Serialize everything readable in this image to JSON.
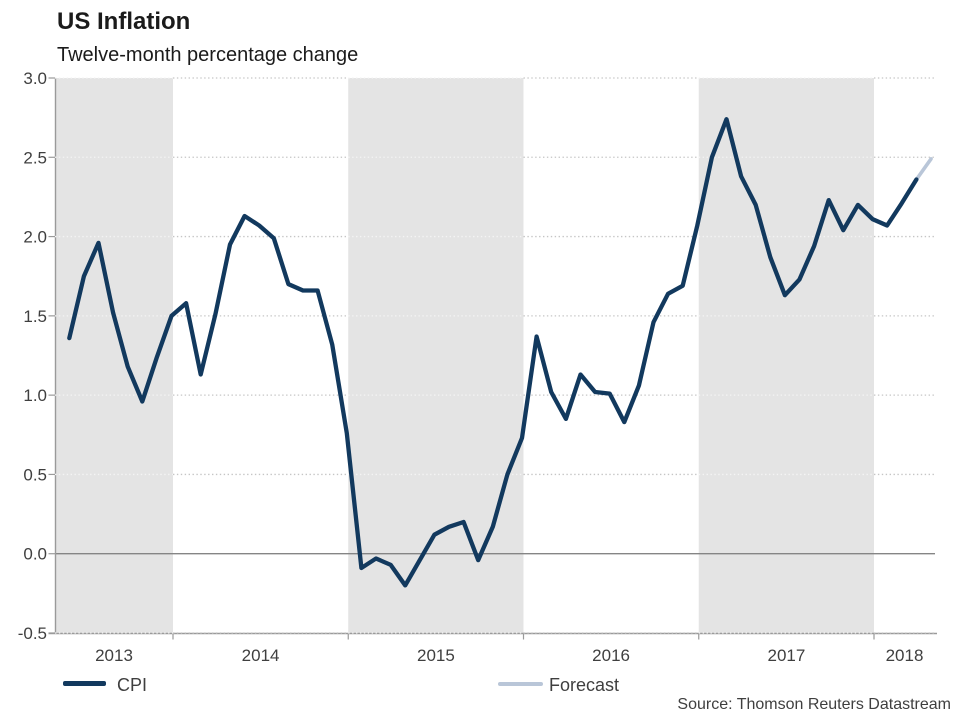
{
  "chart_data": {
    "type": "line",
    "title": "US Inflation",
    "subtitle": "Twelve-month percentage change",
    "source": "Source: Thomson Reuters Datastream",
    "ylim": [
      -0.5,
      3.0
    ],
    "ytick_values": [
      3.0,
      2.5,
      2.0,
      1.5,
      1.0,
      0.5,
      0.0,
      -0.5
    ],
    "ytick_labels": [
      "3.0",
      "2.5",
      "2.0",
      "1.5",
      "1.0",
      "0.5",
      "0.0",
      "-0.5"
    ],
    "xtick_labels": [
      "2013",
      "2014",
      "2015",
      "2016",
      "2017",
      "2018"
    ],
    "shaded_years": [
      2013,
      2015,
      2017
    ],
    "grid": "dotted horizontal, zero line solid",
    "legend_position": "bottom",
    "frequency": "monthly",
    "legend": [
      {
        "label": "CPI",
        "color": "#12395e"
      },
      {
        "label": "Forecast",
        "color": "#b9c6d8"
      }
    ],
    "series": [
      {
        "name": "CPI",
        "color": "#12395e",
        "start": "2013-05",
        "values": [
          1.36,
          1.75,
          1.96,
          1.52,
          1.18,
          0.96,
          1.24,
          1.5,
          1.58,
          1.13,
          1.51,
          1.95,
          2.13,
          2.07,
          1.99,
          1.7,
          1.66,
          1.66,
          1.32,
          0.76,
          -0.09,
          -0.03,
          -0.07,
          -0.2,
          -0.04,
          0.12,
          0.17,
          0.2,
          -0.04,
          0.17,
          0.5,
          0.73,
          1.37,
          1.02,
          0.85,
          1.13,
          1.02,
          1.01,
          0.83,
          1.06,
          1.46,
          1.64,
          1.69,
          2.07,
          2.5,
          2.74,
          2.38,
          2.2,
          1.87,
          1.63,
          1.73,
          1.94,
          2.23,
          2.04,
          2.2,
          2.11,
          2.07,
          2.21,
          2.36
        ]
      },
      {
        "name": "Forecast",
        "color": "#b9c6d8",
        "start": "2018-03",
        "values": [
          2.36,
          2.49
        ]
      }
    ]
  },
  "colors": {
    "band": "#e4e4e4",
    "grid": "#c5c5c5",
    "grid_on_band": "#f4f4f4",
    "zero_line": "#858585",
    "axis": "#9a9a9a",
    "tick_text": "#3f3f3f",
    "title_text": "#1b1b1b"
  }
}
